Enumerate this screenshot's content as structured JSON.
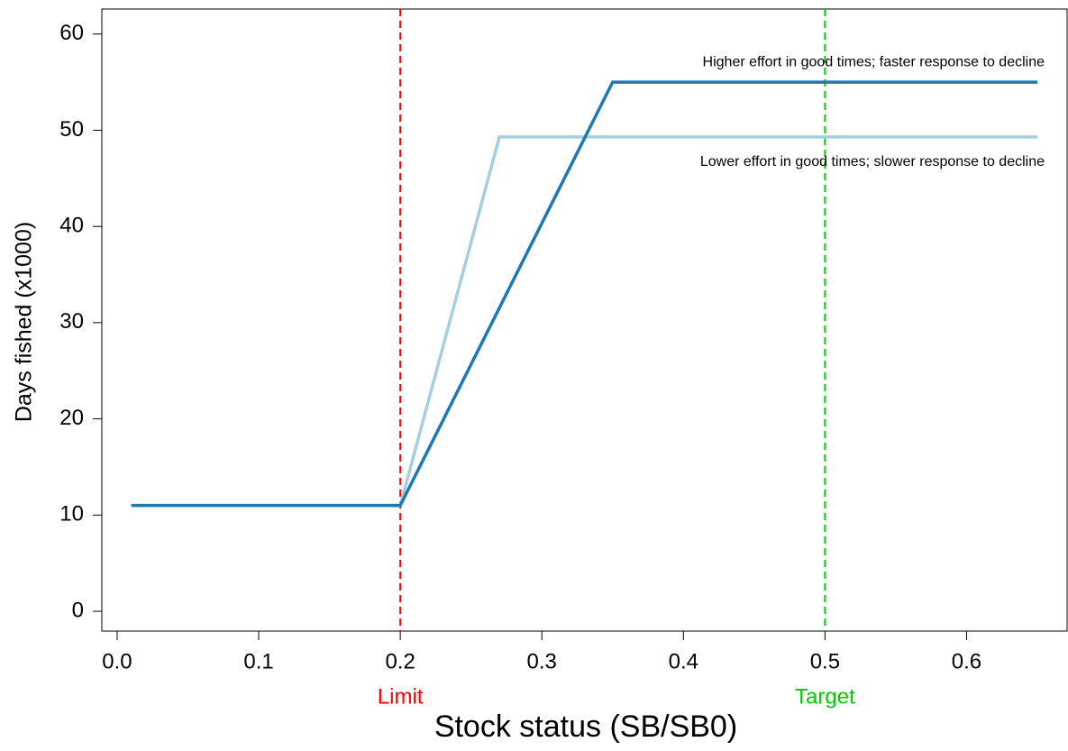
{
  "chart_data": {
    "type": "line",
    "x_label": "Stock status (SB/SB0)",
    "y_label": "Days fished (x1000)",
    "series": [
      {
        "name": "Lower effort in good times; slower response to decline",
        "color": "#a6cee3",
        "x": [
          0.01,
          0.2,
          0.27,
          0.65
        ],
        "values": [
          11,
          11,
          49.3,
          49.3
        ]
      },
      {
        "name": "Higher effort in good times; faster response to decline",
        "color": "#1f78b4",
        "x": [
          0.01,
          0.2,
          0.35,
          0.65
        ],
        "values": [
          11,
          11,
          55,
          55
        ]
      }
    ],
    "reference_lines": [
      {
        "x": 0.2,
        "label": "Limit",
        "color": "#ff0000"
      },
      {
        "x": 0.5,
        "label": "Target",
        "color": "#00cc00"
      }
    ],
    "xlim": [
      -0.0108,
      0.671
    ],
    "ylim": [
      -2.06,
      62.6
    ],
    "xticks": [
      {
        "value": 0,
        "label": "0.0"
      },
      0.1,
      0.2,
      0.3,
      0.4,
      0.5,
      0.6
    ],
    "yticks": [
      0,
      10,
      20,
      30,
      40,
      50,
      60
    ]
  }
}
